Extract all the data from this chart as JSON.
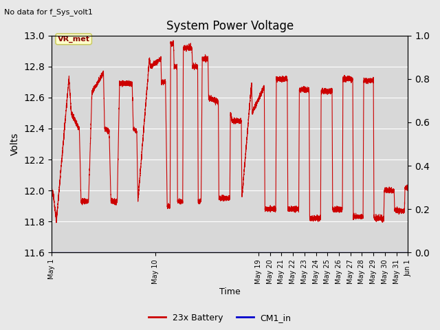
{
  "title": "System Power Voltage",
  "top_left_text": "No data for f_Sys_volt1",
  "xlabel": "Time",
  "ylabel": "Volts",
  "ylim_left": [
    11.6,
    13.0
  ],
  "ylim_right": [
    0.0,
    1.0
  ],
  "yticks_left": [
    11.6,
    11.8,
    12.0,
    12.2,
    12.4,
    12.6,
    12.8,
    13.0
  ],
  "yticks_right": [
    0.0,
    0.2,
    0.4,
    0.6,
    0.8,
    1.0
  ],
  "fig_bg_color": "#e8e8e8",
  "plot_bg_color": "#d8d8d8",
  "grid_color": "#ffffff",
  "line_color_battery": "#cc0000",
  "line_color_cm1": "#0000cc",
  "annotation_text": "VR_met",
  "annotation_bg": "#ffffcc",
  "annotation_border": "#cccc66",
  "legend_battery": "23x Battery",
  "legend_cm1": "CM1_in",
  "x_tick_labels": [
    "May 1",
    "May 10",
    "May 19",
    "May 20",
    "May 21",
    "May 22",
    "May 23",
    "May 24",
    "May 25",
    "May 26",
    "May 27",
    "May 28",
    "May 29",
    "May 30",
    "May 31",
    "Jun 1"
  ],
  "x_tick_positions": [
    0,
    9,
    18,
    19,
    20,
    21,
    22,
    23,
    24,
    25,
    26,
    27,
    28,
    29,
    30,
    31
  ],
  "xlim": [
    0,
    31
  ],
  "key_t": [
    0.0,
    0.15,
    0.4,
    1.5,
    1.7,
    2.4,
    2.55,
    3.2,
    3.5,
    4.5,
    4.6,
    5.0,
    5.15,
    5.7,
    5.9,
    7.0,
    7.1,
    7.4,
    7.5,
    8.5,
    8.6,
    9.5,
    9.55,
    9.9,
    10.05,
    10.3,
    10.35,
    10.6,
    10.65,
    10.9,
    10.95,
    11.4,
    11.45,
    12.2,
    12.25,
    12.7,
    12.75,
    13.0,
    13.1,
    13.6,
    13.65,
    14.5,
    14.55,
    15.5,
    15.55,
    15.7,
    15.8,
    16.5,
    16.55,
    17.4,
    17.45,
    18.5,
    18.55,
    19.5,
    19.55,
    20.5,
    20.55,
    21.5,
    21.55,
    22.4,
    22.45,
    23.4,
    23.45,
    24.4,
    24.45,
    25.3,
    25.35,
    26.2,
    26.25,
    27.1,
    27.15,
    28.0,
    28.05,
    28.9,
    28.95,
    29.8,
    29.85,
    30.7,
    30.75,
    31.0
  ],
  "key_v": [
    12.0,
    11.97,
    11.8,
    12.73,
    12.5,
    12.4,
    11.93,
    11.93,
    12.63,
    12.76,
    12.4,
    12.38,
    11.93,
    11.93,
    12.69,
    12.69,
    12.4,
    12.38,
    11.93,
    12.85,
    12.8,
    12.85,
    12.7,
    12.7,
    11.9,
    11.9,
    12.95,
    12.95,
    12.8,
    12.8,
    11.93,
    11.93,
    12.92,
    12.92,
    12.8,
    12.8,
    11.93,
    11.93,
    12.85,
    12.85,
    12.6,
    12.57,
    11.95,
    11.95,
    12.5,
    12.45,
    12.45,
    12.45,
    11.95,
    12.7,
    12.5,
    12.67,
    11.88,
    11.88,
    12.72,
    12.72,
    11.88,
    11.88,
    12.65,
    12.65,
    11.82,
    11.82,
    12.64,
    12.64,
    11.88,
    11.88,
    12.72,
    12.72,
    11.83,
    11.83,
    12.71,
    12.71,
    11.82,
    11.82,
    12.0,
    12.0,
    11.87,
    11.87,
    12.02,
    12.02
  ]
}
